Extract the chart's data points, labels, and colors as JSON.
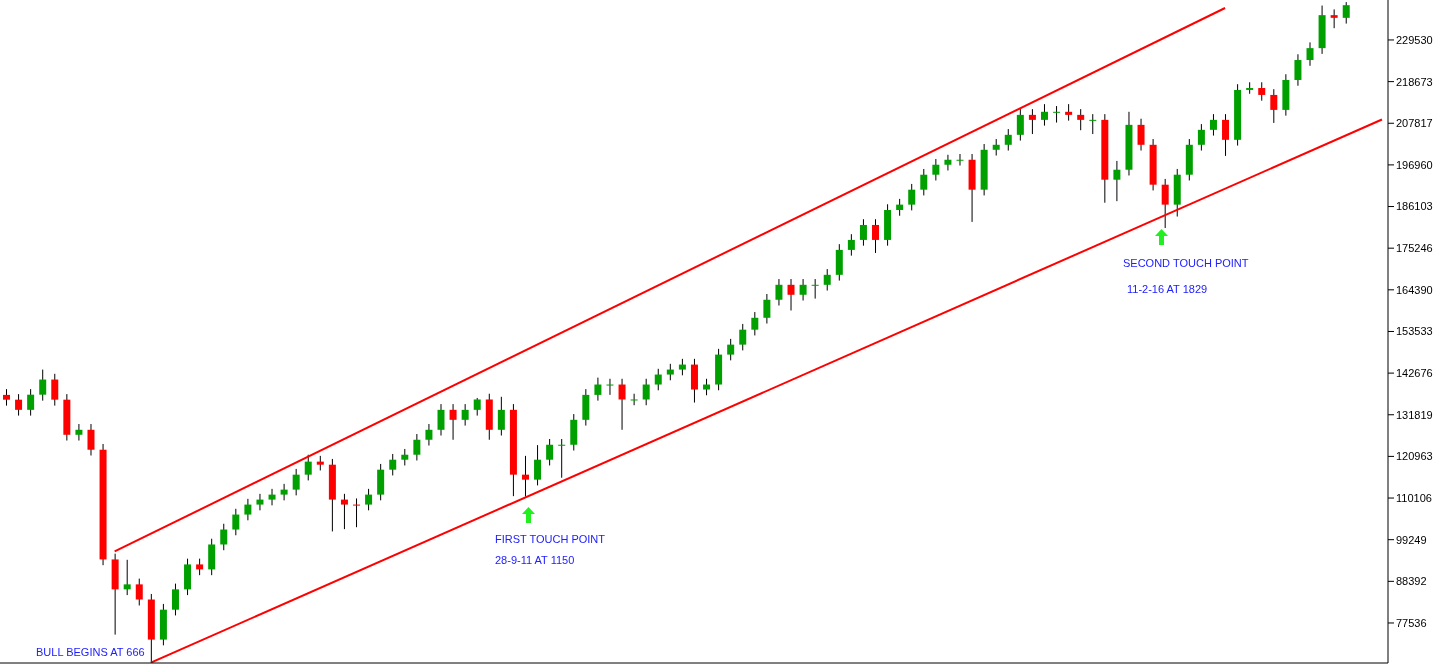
{
  "chart_data": {
    "type": "candlestick",
    "categories": [
      null,
      null,
      null,
      null,
      null,
      null,
      null,
      null,
      null,
      null,
      null,
      null,
      null,
      null,
      null,
      null,
      null,
      null,
      null,
      null,
      null,
      null,
      null,
      null,
      null,
      null,
      null,
      null,
      null,
      null,
      null,
      null,
      null,
      null,
      null,
      null,
      null,
      null,
      null,
      null,
      null,
      null,
      null,
      null,
      null,
      null,
      null,
      null,
      null,
      null,
      null,
      null,
      null,
      null,
      null,
      null,
      null,
      null,
      null,
      null,
      null,
      null,
      null,
      null,
      null,
      null,
      null,
      null,
      null,
      null,
      null,
      null,
      null,
      null,
      null,
      null,
      null,
      null,
      null,
      null,
      null,
      null,
      null,
      null,
      null,
      null,
      null,
      null,
      null,
      null,
      null,
      null,
      null,
      null,
      null,
      null,
      null,
      null,
      null,
      null,
      null,
      null,
      null,
      null,
      null,
      null,
      null,
      null,
      null,
      null,
      null,
      null,
      null,
      null,
      null
    ],
    "ohlc": [
      [
        137000,
        138500,
        134200,
        135750
      ],
      [
        135750,
        137200,
        131600,
        133100
      ],
      [
        133100,
        138500,
        131600,
        137050
      ],
      [
        137050,
        143600,
        135500,
        141000
      ],
      [
        141000,
        142500,
        134200,
        135750
      ],
      [
        135750,
        137200,
        125100,
        126600
      ],
      [
        126600,
        129400,
        125100,
        127900
      ],
      [
        127900,
        129400,
        121200,
        122700
      ],
      [
        122700,
        124200,
        92600,
        94100
      ],
      [
        94100,
        95600,
        74500,
        86300
      ],
      [
        86300,
        94000,
        84800,
        87600
      ],
      [
        87600,
        89100,
        82100,
        83650
      ],
      [
        83650,
        85100,
        67200,
        73200
      ],
      [
        73200,
        82500,
        71700,
        81000
      ],
      [
        81000,
        87800,
        79500,
        86300
      ],
      [
        86300,
        94300,
        84800,
        92800
      ],
      [
        92800,
        94300,
        90000,
        91500
      ],
      [
        91500,
        99500,
        90000,
        98000
      ],
      [
        98000,
        103400,
        96500,
        101900
      ],
      [
        101900,
        107300,
        100400,
        105800
      ],
      [
        105800,
        109900,
        104300,
        108400
      ],
      [
        108400,
        111200,
        106900,
        109700
      ],
      [
        109700,
        112500,
        108200,
        111000
      ],
      [
        111000,
        113800,
        109500,
        112300
      ],
      [
        112300,
        117700,
        110800,
        116200
      ],
      [
        116200,
        121400,
        114700,
        119600
      ],
      [
        119600,
        121100,
        117300,
        118800
      ],
      [
        118800,
        120300,
        101400,
        109700
      ],
      [
        109700,
        111200,
        102000,
        108400
      ],
      [
        108400,
        110000,
        102500,
        108400
      ],
      [
        108400,
        112500,
        106900,
        111000
      ],
      [
        111000,
        119000,
        109500,
        117500
      ],
      [
        117500,
        121600,
        116000,
        120100
      ],
      [
        120100,
        122900,
        118600,
        121400
      ],
      [
        121400,
        126800,
        119900,
        125300
      ],
      [
        125300,
        129400,
        123800,
        127900
      ],
      [
        127900,
        134600,
        126400,
        133100
      ],
      [
        133100,
        134600,
        125300,
        130500
      ],
      [
        130500,
        134600,
        129000,
        133100
      ],
      [
        133100,
        136200,
        131600,
        135800
      ],
      [
        135800,
        137300,
        125300,
        127900
      ],
      [
        127900,
        136500,
        126400,
        133100
      ],
      [
        133100,
        134600,
        110600,
        116200
      ],
      [
        116200,
        121100,
        110500,
        114900
      ],
      [
        114900,
        123900,
        113400,
        120100
      ],
      [
        120100,
        125500,
        118600,
        124000
      ],
      [
        124000,
        125500,
        115400,
        124000
      ],
      [
        124000,
        132000,
        122500,
        130500
      ],
      [
        130500,
        138500,
        129000,
        137000
      ],
      [
        137000,
        141500,
        135500,
        139700
      ],
      [
        139700,
        141200,
        137000,
        139700
      ],
      [
        139700,
        141200,
        127900,
        135800
      ],
      [
        135800,
        137300,
        134300,
        135800
      ],
      [
        135800,
        141200,
        134300,
        139700
      ],
      [
        139700,
        143800,
        138200,
        142300
      ],
      [
        142300,
        145100,
        140800,
        143600
      ],
      [
        143600,
        146400,
        142100,
        144900
      ],
      [
        144900,
        146400,
        135000,
        138400
      ],
      [
        138400,
        141200,
        136900,
        139700
      ],
      [
        139700,
        149000,
        138200,
        147500
      ],
      [
        147500,
        151600,
        146000,
        150100
      ],
      [
        150100,
        155500,
        148600,
        154000
      ],
      [
        154000,
        158600,
        152500,
        157100
      ],
      [
        157100,
        163300,
        155600,
        161800
      ],
      [
        161800,
        167200,
        160300,
        165700
      ],
      [
        165700,
        167200,
        159000,
        163100
      ],
      [
        163100,
        167200,
        161600,
        165700
      ],
      [
        165700,
        167200,
        162100,
        165700
      ],
      [
        165700,
        169800,
        164200,
        168300
      ],
      [
        168300,
        176300,
        166800,
        174800
      ],
      [
        174800,
        178900,
        173300,
        177400
      ],
      [
        177400,
        182800,
        175900,
        181300
      ],
      [
        181300,
        182800,
        174000,
        177400
      ],
      [
        177400,
        186700,
        175900,
        185200
      ],
      [
        185200,
        188100,
        183700,
        186600
      ],
      [
        186600,
        192000,
        185100,
        190500
      ],
      [
        190500,
        195900,
        189000,
        194400
      ],
      [
        194400,
        198500,
        192900,
        197000
      ],
      [
        197000,
        199600,
        195500,
        198300
      ],
      [
        198300,
        199800,
        196800,
        198300
      ],
      [
        198300,
        199800,
        182100,
        190500
      ],
      [
        190500,
        202400,
        189000,
        200900
      ],
      [
        200900,
        203700,
        199400,
        202200
      ],
      [
        202200,
        206300,
        200700,
        204800
      ],
      [
        204800,
        211500,
        203300,
        210000
      ],
      [
        210000,
        211500,
        205000,
        208700
      ],
      [
        208700,
        212800,
        207200,
        210800
      ],
      [
        210800,
        212300,
        208000,
        210800
      ],
      [
        210800,
        212800,
        208500,
        210000
      ],
      [
        210000,
        211500,
        206000,
        208700
      ],
      [
        208700,
        210200,
        205000,
        208700
      ],
      [
        208700,
        210200,
        187100,
        193100
      ],
      [
        193100,
        198000,
        187500,
        195700
      ],
      [
        195700,
        210800,
        194200,
        207400
      ],
      [
        207400,
        209000,
        200700,
        202200
      ],
      [
        202200,
        203700,
        190300,
        191800
      ],
      [
        191800,
        193300,
        180500,
        186600
      ],
      [
        186600,
        195900,
        183500,
        194400
      ],
      [
        194400,
        203700,
        192900,
        202200
      ],
      [
        202200,
        207600,
        200700,
        206100
      ],
      [
        206100,
        210200,
        204600,
        208700
      ],
      [
        208700,
        210200,
        199300,
        203500
      ],
      [
        203500,
        218000,
        202000,
        216500
      ],
      [
        216500,
        218500,
        215500,
        217000
      ],
      [
        217000,
        218500,
        213700,
        215200
      ],
      [
        215200,
        216700,
        207900,
        211300
      ],
      [
        211300,
        220600,
        209800,
        219100
      ],
      [
        219100,
        225800,
        217600,
        224300
      ],
      [
        224300,
        228900,
        222800,
        227400
      ],
      [
        227400,
        238500,
        225900,
        236000
      ],
      [
        236000,
        237500,
        232600,
        235300
      ],
      [
        235300,
        239400,
        233800,
        238600
      ],
      null,
      null,
      null
    ],
    "colors": [
      "#ff0000",
      "#ff0000",
      "#00a000",
      "#00a000",
      "#ff0000",
      "#ff0000",
      "#00a000",
      "#ff0000",
      "#ff0000",
      "#ff0000",
      "#00a000",
      "#ff0000",
      "#ff0000",
      "#00a000",
      "#00a000",
      "#00a000",
      "#ff0000",
      "#00a000",
      "#00a000",
      "#00a000",
      "#00a000",
      "#00a000",
      "#00a000",
      "#00a000",
      "#00a000",
      "#00a000",
      "#ff0000",
      "#ff0000",
      "#ff0000",
      "#ff0000",
      "#00a000",
      "#00a000",
      "#00a000",
      "#00a000",
      "#00a000",
      "#00a000",
      "#00a000",
      "#ff0000",
      "#00a000",
      "#00a000",
      "#ff0000",
      "#00a000",
      "#ff0000",
      "#ff0000",
      "#00a000",
      "#00a000",
      "#00a000",
      "#00a000",
      "#00a000",
      "#00a000",
      "#00a000",
      "#ff0000",
      "#00a000",
      "#00a000",
      "#00a000",
      "#00a000",
      "#00a000",
      "#ff0000",
      "#00a000",
      "#00a000",
      "#00a000",
      "#00a000",
      "#00a000",
      "#00a000",
      "#00a000",
      "#ff0000",
      "#00a000",
      "#00a000",
      "#00a000",
      "#00a000",
      "#00a000",
      "#00a000",
      "#ff0000",
      "#00a000",
      "#00a000",
      "#00a000",
      "#00a000",
      "#00a000",
      "#00a000",
      "#00a000",
      "#ff0000",
      "#00a000",
      "#00a000",
      "#00a000",
      "#00a000",
      "#ff0000",
      "#00a000",
      "#00a000",
      "#ff0000",
      "#ff0000",
      "#00a000",
      "#ff0000",
      "#00a000",
      "#00a000",
      "#ff0000",
      "#ff0000",
      "#ff0000",
      "#00a000",
      "#00a000",
      "#00a000",
      "#00a000",
      "#ff0000",
      "#00a000",
      "#00a000",
      "#ff0000",
      "#ff0000",
      "#00a000",
      "#00a000",
      "#00a000",
      "#00a000",
      "#ff0000",
      "#00a000",
      null,
      null,
      null
    ],
    "series": [
      {
        "type": "line",
        "color": "#ff0000",
        "values": [
          null,
          null,
          null,
          null,
          null,
          null,
          null,
          null,
          null,
          96200,
          null,
          null,
          null,
          null,
          null,
          null,
          null,
          null,
          null,
          null,
          null,
          null,
          null,
          null,
          null,
          null,
          null,
          null,
          null,
          null,
          null,
          null,
          null,
          null,
          null,
          null,
          null,
          null,
          null,
          null,
          null,
          null,
          null,
          null,
          null,
          null,
          null,
          null,
          null,
          null,
          null,
          null,
          null,
          null,
          null,
          null,
          null,
          null,
          null,
          null,
          null,
          null,
          null,
          null,
          null,
          null,
          null,
          null,
          null,
          null,
          null,
          null,
          null,
          null,
          null,
          null,
          null,
          null,
          null,
          null,
          null,
          null,
          null,
          null,
          null,
          null,
          null,
          null,
          null,
          null,
          null,
          null,
          null,
          null,
          null,
          null,
          null,
          null,
          null,
          null,
          null,
          237870,
          null,
          null,
          null,
          null,
          null,
          null,
          null,
          null,
          null,
          null,
          null,
          null,
          null
        ]
      },
      {
        "type": "line",
        "color": "#ff0000",
        "values": [
          null,
          null,
          null,
          null,
          null,
          null,
          null,
          null,
          null,
          null,
          null,
          null,
          67200,
          null,
          null,
          null,
          null,
          null,
          null,
          null,
          null,
          null,
          null,
          null,
          null,
          null,
          null,
          null,
          null,
          null,
          null,
          null,
          null,
          null,
          null,
          null,
          null,
          null,
          null,
          null,
          null,
          null,
          null,
          null,
          null,
          null,
          null,
          null,
          null,
          null,
          null,
          null,
          null,
          null,
          null,
          null,
          null,
          null,
          null,
          null,
          null,
          null,
          null,
          null,
          null,
          null,
          null,
          null,
          null,
          null,
          null,
          null,
          null,
          null,
          null,
          null,
          null,
          null,
          null,
          null,
          null,
          null,
          null,
          null,
          null,
          null,
          null,
          null,
          null,
          null,
          null,
          null,
          null,
          null,
          null,
          null,
          null,
          null,
          null,
          null,
          null,
          null,
          null,
          null,
          null,
          null,
          null,
          null,
          null,
          null,
          null,
          null,
          null,
          null,
          208800
        ]
      }
    ],
    "ylim": [
      67100,
      239950
    ],
    "yticks": [
      77536,
      88392,
      99249,
      110106,
      120963,
      131819,
      142676,
      153533,
      164390,
      175246,
      186103,
      196960,
      207817,
      218673,
      229530
    ],
    "tick_labels": "y",
    "grid": false,
    "legend": false,
    "annotations": [
      "BULL BEGINS AT 666",
      "FIRST TOUCH POINT",
      "28-9-11 AT 1150",
      "SECOND TOUCH POINT",
      "11-2-16 AT 1829"
    ]
  }
}
